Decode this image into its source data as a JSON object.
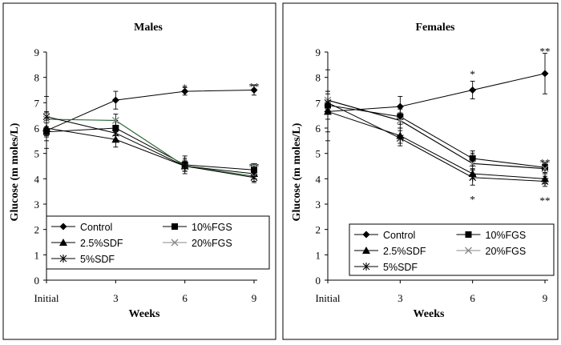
{
  "chart_data": [
    {
      "type": "line",
      "title": "Males",
      "xlabel": "Weeks",
      "ylabel": "Glucose (m moles/L)",
      "categories": [
        "Initial",
        "3",
        "6",
        "9"
      ],
      "ylim": [
        0,
        9
      ],
      "yticks": [
        0,
        1,
        2,
        3,
        4,
        5,
        6,
        7,
        8,
        9
      ],
      "legend": "bottom-inside",
      "series": [
        {
          "name": "Control",
          "marker": "diamond",
          "color": "#000000",
          "values": [
            5.9,
            7.1,
            7.45,
            7.5
          ],
          "err": [
            0.7,
            0.35,
            0.15,
            0.2
          ]
        },
        {
          "name": "10%FGS",
          "marker": "square",
          "color": "#000000",
          "values": [
            5.85,
            6.0,
            4.55,
            4.35
          ],
          "err": [
            0.35,
            0.3,
            0.35,
            0.25
          ]
        },
        {
          "name": "2.5%SDF",
          "marker": "triangle",
          "color": "#000000",
          "values": [
            6.0,
            5.55,
            4.5,
            4.2
          ],
          "err": [
            0.3,
            0.3,
            0.2,
            0.2
          ]
        },
        {
          "name": "20%FGS",
          "marker": "x",
          "color": "#2f6b3a",
          "values": [
            6.35,
            6.3,
            4.5,
            4.1
          ],
          "err": [
            0.3,
            0.25,
            0.2,
            0.2
          ]
        },
        {
          "name": "5%SDF",
          "marker": "asterisk",
          "color": "#000000",
          "values": [
            6.45,
            5.8,
            4.5,
            4.05
          ],
          "err": [
            0.8,
            0.25,
            0.2,
            0.2
          ]
        }
      ],
      "annotations": [
        {
          "x": "6",
          "y": 7.7,
          "text": "*"
        },
        {
          "x": "9",
          "y": 7.75,
          "text": "**"
        },
        {
          "x": "6",
          "y": 4.85,
          "text": "*"
        },
        {
          "x": "9",
          "y": 4.6,
          "text": "**"
        }
      ]
    },
    {
      "type": "line",
      "title": "Females",
      "xlabel": "Weeks",
      "ylabel": "Glucose (m moles/L)",
      "categories": [
        "Initial",
        "3",
        "6",
        "9"
      ],
      "ylim": [
        0,
        9
      ],
      "yticks": [
        0,
        1,
        2,
        3,
        4,
        5,
        6,
        7,
        8,
        9
      ],
      "legend": "bottom-inside",
      "series": [
        {
          "name": "Control",
          "marker": "diamond",
          "color": "#000000",
          "values": [
            6.65,
            6.85,
            7.5,
            8.15
          ],
          "err": [
            0.8,
            0.4,
            0.35,
            0.8
          ]
        },
        {
          "name": "10%FGS",
          "marker": "square",
          "color": "#000000",
          "values": [
            6.9,
            6.45,
            4.8,
            4.45
          ],
          "err": [
            1.4,
            0.3,
            0.3,
            0.2
          ]
        },
        {
          "name": "2.5%SDF",
          "marker": "triangle",
          "color": "#000000",
          "values": [
            6.65,
            5.7,
            4.2,
            4.0
          ],
          "err": [
            0.3,
            0.3,
            0.2,
            0.2
          ]
        },
        {
          "name": "20%FGS",
          "marker": "x",
          "color": "#000000",
          "values": [
            7.1,
            6.3,
            4.6,
            4.4
          ],
          "err": [
            0.35,
            0.3,
            0.25,
            0.2
          ]
        },
        {
          "name": "5%SDF",
          "marker": "asterisk",
          "color": "#000000",
          "values": [
            7.0,
            5.6,
            4.05,
            3.9
          ],
          "err": [
            0.35,
            0.3,
            0.3,
            0.2
          ]
        }
      ],
      "annotations": [
        {
          "x": "6",
          "y": 8.25,
          "text": "*"
        },
        {
          "x": "9",
          "y": 9.15,
          "text": "**"
        },
        {
          "x": "6",
          "y": 5.05,
          "text": "*"
        },
        {
          "x": "9",
          "y": 4.75,
          "text": "**"
        },
        {
          "x": "6",
          "y": 3.3,
          "text": "*"
        },
        {
          "x": "9",
          "y": 3.25,
          "text": "**"
        }
      ]
    }
  ]
}
